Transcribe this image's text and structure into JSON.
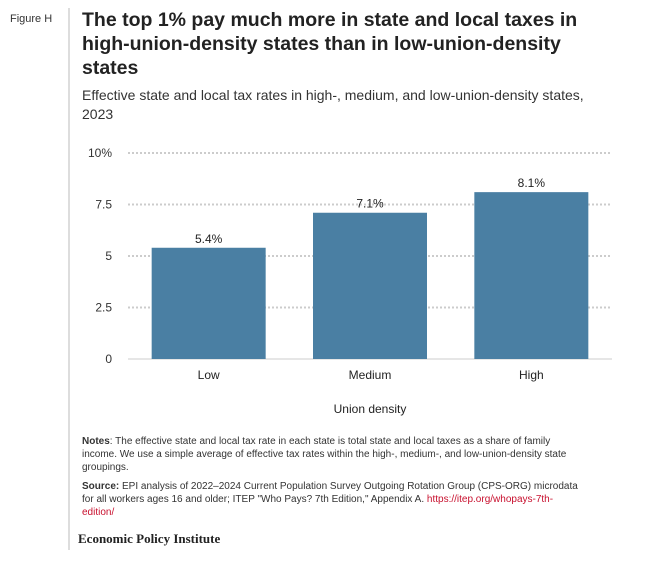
{
  "figure_label": "Figure H",
  "title": "The top 1% pay much more in state and local taxes in high-union-density states than in low-union-density states",
  "subtitle": "Effective state and local tax rates in high-, medium, and low-union-density states, 2023",
  "chart_data": {
    "type": "bar",
    "categories": [
      "Low",
      "Medium",
      "High"
    ],
    "values": [
      5.4,
      7.1,
      8.1
    ],
    "data_labels": [
      "5.4%",
      "7.1%",
      "8.1%"
    ],
    "xlabel": "Union density",
    "ylabel": "",
    "ylim": [
      0,
      10
    ],
    "yticks": [
      0,
      2.5,
      5,
      7.5,
      10
    ],
    "ytick_labels": [
      "0",
      "2.5",
      "5",
      "7.5",
      "10%"
    ],
    "bar_color": "#4a7fa3",
    "grid": true
  },
  "notes": {
    "label": "Notes",
    "text": ": The effective state and local tax rate in each state is total state and local taxes as a share of family income. We use a simple average of effective tax rates within the high-, medium-, and low-union-density state groupings."
  },
  "source": {
    "label": "Source:",
    "text": " EPI analysis of 2022–2024 Current Population Survey Outgoing Rotation Group (CPS-ORG) microdata for all workers ages 16 and older; ITEP \"Who Pays? 7th Edition,\" Appendix A. ",
    "link": "https://itep.org/whopays-7th-edition/"
  },
  "brand": "Economic Policy Institute"
}
